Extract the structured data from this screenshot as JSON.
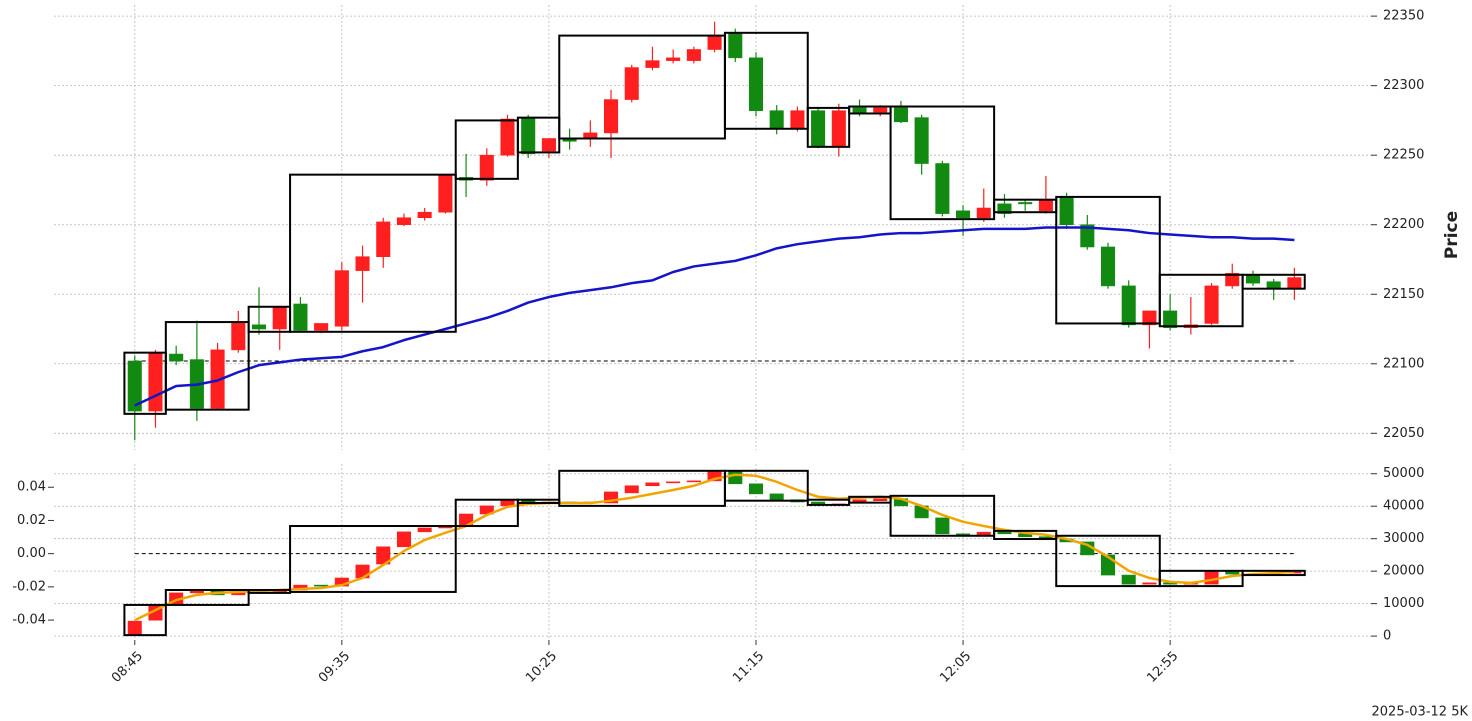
{
  "chart_data": [
    {
      "type": "candlestick",
      "y_label": "Price",
      "y_axis_side": "right",
      "grid": true,
      "up_color": "#ff1f1f",
      "down_color": "#128a12",
      "x": [
        0,
        1,
        2,
        3,
        4,
        5,
        6,
        7,
        8,
        9,
        10,
        11,
        12,
        13,
        14,
        15,
        16,
        17,
        18,
        19,
        20,
        21,
        22,
        23,
        24,
        25,
        26,
        27,
        28,
        29,
        30,
        31,
        32,
        33,
        34,
        35,
        36,
        37,
        38,
        39,
        40,
        41,
        42,
        43,
        44,
        45,
        46,
        47,
        48,
        49,
        50,
        51,
        52,
        53,
        54,
        55,
        56
      ],
      "open": [
        22102,
        22066,
        22107,
        22103,
        22068,
        22110,
        22128,
        22125,
        22143,
        22124,
        22127,
        22167,
        22177,
        22200,
        22205,
        22209,
        22234,
        22232,
        22250,
        22277,
        22253,
        22262,
        22262,
        22266,
        22290,
        22313,
        22318,
        22318,
        22326,
        22338,
        22320,
        22282,
        22269,
        22282,
        22256,
        22284,
        22281,
        22284,
        22277,
        22244,
        22210,
        22205,
        22215,
        22216,
        22210,
        22220,
        22200,
        22184,
        22156,
        22128,
        22138,
        22126,
        22129,
        22156,
        22164,
        22159,
        22154
      ],
      "high": [
        22106,
        22110,
        22113,
        22131,
        22115,
        22138,
        22155,
        22141,
        22148,
        22129,
        22173,
        22185,
        22205,
        22208,
        22212,
        22236,
        22251,
        22255,
        22279,
        22279,
        22262,
        22269,
        22275,
        22297,
        22315,
        22328,
        22326,
        22328,
        22346,
        22341,
        22324,
        22286,
        22285,
        22284,
        22287,
        22290,
        22286,
        22289,
        22279,
        22246,
        22214,
        22226,
        22222,
        22218,
        22235,
        22223,
        22207,
        22187,
        22160,
        22138,
        22150,
        22148,
        22158,
        22172,
        22167,
        22161,
        22169
      ],
      "low": [
        22045,
        22054,
        22099,
        22059,
        22067,
        22108,
        22121,
        22110,
        22123,
        22122,
        22124,
        22144,
        22169,
        22199,
        22203,
        22208,
        22220,
        22228,
        22249,
        22248,
        22248,
        22254,
        22256,
        22248,
        22288,
        22311,
        22316,
        22316,
        22324,
        22317,
        22278,
        22265,
        22267,
        22255,
        22249,
        22278,
        22278,
        22273,
        22236,
        22206,
        22192,
        22202,
        22205,
        22210,
        22208,
        22197,
        22182,
        22154,
        22126,
        22111,
        22124,
        22121,
        22128,
        22154,
        22156,
        22146,
        22146
      ],
      "close": [
        22066,
        22108,
        22102,
        22068,
        22110,
        22130,
        22125,
        22141,
        22124,
        22129,
        22167,
        22177,
        22202,
        22205,
        22209,
        22236,
        22232,
        22250,
        22276,
        22251,
        22262,
        22260,
        22266,
        22290,
        22313,
        22318,
        22320,
        22326,
        22336,
        22320,
        22282,
        22269,
        22282,
        22256,
        22282,
        22280,
        22284,
        22274,
        22244,
        22208,
        22205,
        22212,
        22208,
        22215,
        22218,
        22200,
        22184,
        22156,
        22128,
        22138,
        22126,
        22128,
        22156,
        22165,
        22158,
        22154,
        22162
      ],
      "line": {
        "color": "#1414c8",
        "values": [
          22070,
          22077,
          22084,
          22085,
          22088,
          22094,
          22099,
          22101,
          22103,
          22104,
          22105,
          22109,
          22112,
          22117,
          22121,
          22125,
          22129,
          22133,
          22138,
          22144,
          22148,
          22151,
          22153,
          22155,
          22158,
          22160,
          22166,
          22170,
          22172,
          22174,
          22178,
          22183,
          22186,
          22188,
          22190,
          22191,
          22193,
          22194,
          22194,
          22195,
          22196,
          22197,
          22197,
          22197,
          22198,
          22198,
          22198,
          22197,
          22196,
          22194,
          22193,
          22192,
          22191,
          22191,
          22190,
          22190,
          22189
        ]
      },
      "hline": {
        "value": 22102,
        "style": "dashed"
      },
      "boxes": [
        {
          "x": [
            -0.5,
            1.5
          ],
          "low": 22064,
          "high": 22108
        },
        {
          "x": [
            1.5,
            5.5
          ],
          "low": 22067,
          "high": 22130
        },
        {
          "x": [
            5.5,
            7.5
          ],
          "low": 22123,
          "high": 22141
        },
        {
          "x": [
            7.5,
            15.5
          ],
          "low": 22123,
          "high": 22236
        },
        {
          "x": [
            15.5,
            18.5
          ],
          "low": 22233,
          "high": 22275
        },
        {
          "x": [
            18.5,
            20.5
          ],
          "low": 22252,
          "high": 22277
        },
        {
          "x": [
            20.5,
            28.5
          ],
          "low": 22262,
          "high": 22336
        },
        {
          "x": [
            28.5,
            32.5
          ],
          "low": 22269,
          "high": 22338
        },
        {
          "x": [
            32.5,
            34.5
          ],
          "low": 22256,
          "high": 22284
        },
        {
          "x": [
            34.5,
            36.5
          ],
          "low": 22280,
          "high": 22285
        },
        {
          "x": [
            36.5,
            41.5
          ],
          "low": 22204,
          "high": 22285
        },
        {
          "x": [
            41.5,
            44.5
          ],
          "low": 22209,
          "high": 22218
        },
        {
          "x": [
            44.5,
            49.5
          ],
          "low": 22129,
          "high": 22220
        },
        {
          "x": [
            49.5,
            53.5
          ],
          "low": 22127,
          "high": 22164
        },
        {
          "x": [
            53.5,
            56.5
          ],
          "low": 22154,
          "high": 22164
        }
      ],
      "xlim": [
        -3.9,
        59.7
      ],
      "ylim": [
        22038,
        22358
      ],
      "yticks": [
        22050,
        22100,
        22150,
        22200,
        22250,
        22300,
        22350
      ]
    },
    {
      "type": "candlestick",
      "axis": "y2",
      "grid": true,
      "up_color": "#ff1f1f",
      "down_color": "#128a12",
      "x": [
        0,
        1,
        2,
        3,
        4,
        5,
        6,
        7,
        8,
        9,
        10,
        11,
        12,
        13,
        14,
        15,
        16,
        17,
        18,
        19,
        20,
        21,
        22,
        23,
        24,
        25,
        26,
        27,
        28,
        29,
        30,
        31,
        32,
        33,
        34,
        35,
        36,
        37,
        38,
        39,
        40,
        41,
        42,
        43,
        44,
        45,
        46,
        47,
        48,
        49,
        50,
        51,
        52,
        53,
        54,
        55,
        56
      ],
      "open": [
        620,
        4900,
        9900,
        13300,
        13900,
        12700,
        13300,
        13600,
        14200,
        15700,
        15400,
        17900,
        22200,
        27500,
        32100,
        33300,
        33900,
        37600,
        40100,
        41700,
        41000,
        41300,
        41000,
        41000,
        44100,
        46300,
        47200,
        47500,
        47800,
        50600,
        46900,
        43800,
        42000,
        41300,
        40400,
        41000,
        41700,
        42300,
        40100,
        36400,
        31500,
        31000,
        32000,
        31500,
        30600,
        29900,
        29000,
        25000,
        18800,
        16000,
        16400,
        16000,
        16000,
        19800,
        19100,
        18900,
        19400
      ],
      "close": [
        4600,
        9300,
        13300,
        14000,
        12700,
        13300,
        13600,
        14200,
        15700,
        15400,
        17900,
        21900,
        27500,
        32100,
        33300,
        33900,
        37600,
        40100,
        42000,
        41000,
        41300,
        41000,
        41300,
        44400,
        46300,
        47200,
        47500,
        47800,
        50600,
        46900,
        43800,
        42000,
        41300,
        40400,
        40700,
        42000,
        42300,
        40100,
        36400,
        31500,
        31000,
        32000,
        31500,
        30600,
        29900,
        29000,
        25000,
        18800,
        16000,
        16400,
        16000,
        16300,
        19800,
        19100,
        18900,
        19400,
        19700
      ],
      "line": {
        "color": "#f0a500",
        "values": [
          4900,
          8000,
          11100,
          12700,
          13300,
          13600,
          13900,
          14200,
          14500,
          14800,
          15700,
          17900,
          21900,
          26200,
          29600,
          31800,
          33900,
          37300,
          39800,
          40700,
          41000,
          41000,
          41000,
          41700,
          42600,
          43800,
          45000,
          46300,
          48400,
          49700,
          49400,
          47500,
          45000,
          42900,
          42300,
          42600,
          42900,
          42300,
          40100,
          37300,
          35200,
          33900,
          32700,
          31800,
          31200,
          29900,
          28100,
          24400,
          20100,
          17900,
          16700,
          16400,
          17300,
          18500,
          19100,
          19400,
          19800
        ]
      },
      "hline": {
        "value": 0,
        "axis": "y",
        "style": "dashed"
      },
      "boxes": [
        {
          "x": [
            -0.5,
            1.5
          ],
          "low": 300,
          "high": 9600
        },
        {
          "x": [
            1.5,
            5.5
          ],
          "low": 9600,
          "high": 14200
        },
        {
          "x": [
            5.5,
            7.5
          ],
          "low": 13300,
          "high": 14200
        },
        {
          "x": [
            7.5,
            15.5
          ],
          "low": 13600,
          "high": 33900
        },
        {
          "x": [
            15.5,
            18.5
          ],
          "low": 33900,
          "high": 42000
        },
        {
          "x": [
            18.5,
            20.5
          ],
          "low": 41000,
          "high": 42000
        },
        {
          "x": [
            20.5,
            28.5
          ],
          "low": 40100,
          "high": 50900
        },
        {
          "x": [
            28.5,
            32.5
          ],
          "low": 41700,
          "high": 50900
        },
        {
          "x": [
            32.5,
            34.5
          ],
          "low": 40400,
          "high": 42000
        },
        {
          "x": [
            34.5,
            36.5
          ],
          "low": 41100,
          "high": 42900
        },
        {
          "x": [
            36.5,
            41.5
          ],
          "low": 30900,
          "high": 43200
        },
        {
          "x": [
            41.5,
            44.5
          ],
          "low": 29900,
          "high": 32400
        },
        {
          "x": [
            44.5,
            49.5
          ],
          "low": 15400,
          "high": 30900
        },
        {
          "x": [
            49.5,
            53.5
          ],
          "low": 15400,
          "high": 20100
        },
        {
          "x": [
            53.5,
            56.5
          ],
          "low": 18800,
          "high": 20100
        }
      ],
      "xlim": [
        -3.9,
        59.7
      ],
      "xticks": [
        {
          "value": 0,
          "label": "08:45"
        },
        {
          "value": 10,
          "label": "09:35"
        },
        {
          "value": 20,
          "label": "10:25"
        },
        {
          "value": 30,
          "label": "11:15"
        },
        {
          "value": 40,
          "label": "12:05"
        },
        {
          "value": 50,
          "label": "12:55"
        }
      ],
      "ylim": [
        -0.052,
        0.054
      ],
      "yticks": [
        -0.04,
        -0.02,
        {
          "value": 0,
          "label": "0.00"
        },
        0.02,
        0.04
      ],
      "y2lim": [
        -1200,
        53000
      ],
      "y2ticks": [
        0,
        10000,
        20000,
        30000,
        40000,
        50000
      ]
    }
  ],
  "footer": "2025-03-12 5K"
}
